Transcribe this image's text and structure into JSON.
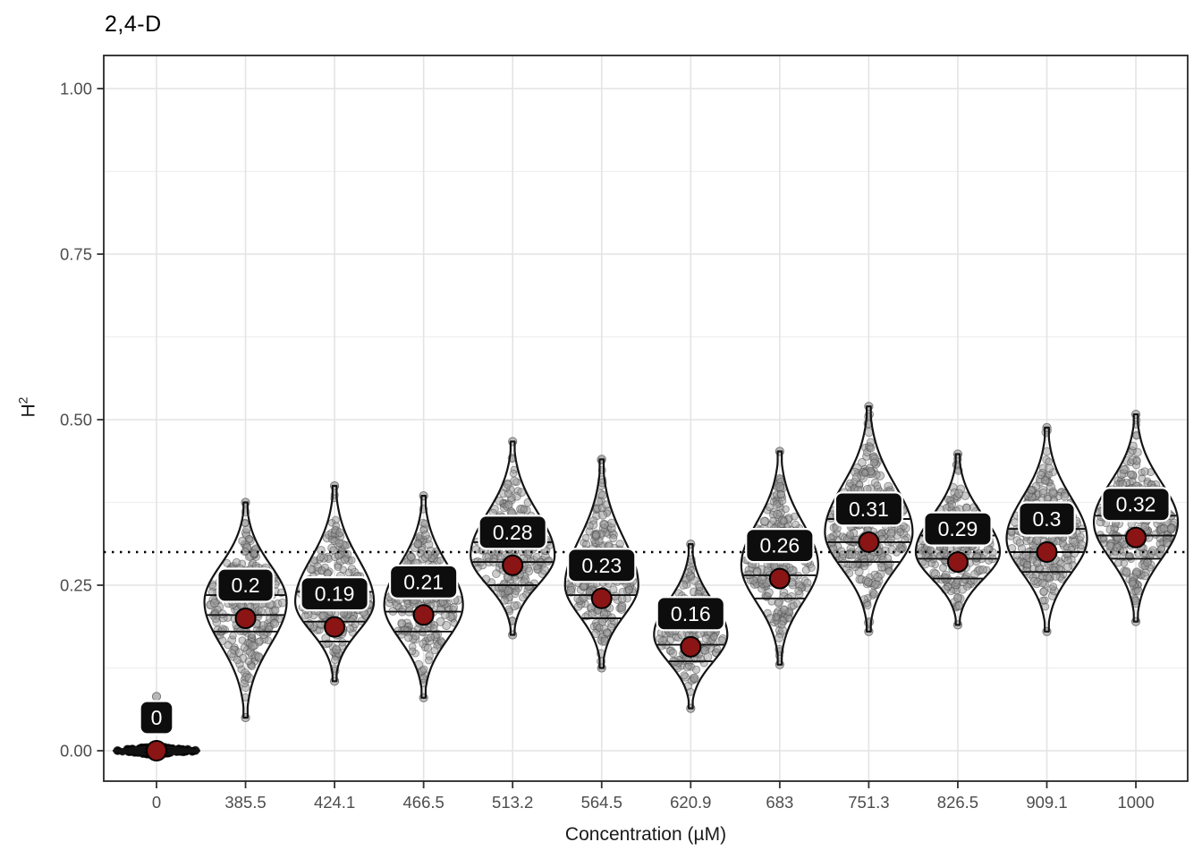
{
  "chart_data": {
    "type": "violin",
    "title": "2,4-D",
    "xlabel": "Concentration (µM)",
    "ylabel": "H^2",
    "ylabel_base": "H",
    "ylabel_sup": "2",
    "x_categories": [
      "0",
      "385.5",
      "424.1",
      "466.5",
      "513.2",
      "564.5",
      "620.9",
      "683",
      "751.3",
      "826.5",
      "909.1",
      "1000"
    ],
    "y_ticks": [
      {
        "value": 0.0,
        "label": "0.00"
      },
      {
        "value": 0.25,
        "label": "0.25"
      },
      {
        "value": 0.5,
        "label": "0.50"
      },
      {
        "value": 0.75,
        "label": "0.75"
      },
      {
        "value": 1.0,
        "label": "1.00"
      }
    ],
    "y_minor_ticks": [
      0.125,
      0.375,
      0.625,
      0.875
    ],
    "ylim": [
      -0.046,
      1.05
    ],
    "reference_line": {
      "y": 0.3,
      "style": "dotted"
    },
    "grid": true,
    "legend": "none",
    "colors": {
      "summary_point": "#8B1414",
      "label_box": "#0d0d0d",
      "label_text": "#ffffff",
      "violin_outline": "#141414",
      "jitter_point": "#9a9a9a",
      "grid_major": "#e4e4e4",
      "grid_minor": "#efefef",
      "axis_text": "#4d4d4d",
      "panel_border": "#262626",
      "reference_line_color": "#000000"
    },
    "series": [
      {
        "x": "0",
        "value_label": "0",
        "value": 0.0,
        "q1": -0.002,
        "q2": 0.0,
        "q3": 0.002,
        "min": -0.009,
        "max": 0.009,
        "mode": 0.0,
        "peak_halfwidth": 48,
        "flat": true,
        "outlier": 0.082,
        "point_color": "#000000"
      },
      {
        "x": "385.5",
        "value_label": "0.2",
        "value": 0.2,
        "q1": 0.18,
        "q2": 0.205,
        "q3": 0.235,
        "min": 0.05,
        "max": 0.375,
        "mode": 0.225,
        "peak_halfwidth": 46
      },
      {
        "x": "424.1",
        "value_label": "0.19",
        "value": 0.187,
        "q1": 0.165,
        "q2": 0.195,
        "q3": 0.24,
        "min": 0.105,
        "max": 0.4,
        "mode": 0.225,
        "peak_halfwidth": 44
      },
      {
        "x": "466.5",
        "value_label": "0.21",
        "value": 0.205,
        "q1": 0.18,
        "q2": 0.21,
        "q3": 0.265,
        "min": 0.08,
        "max": 0.385,
        "mode": 0.22,
        "peak_halfwidth": 44
      },
      {
        "x": "513.2",
        "value_label": "0.28",
        "value": 0.28,
        "q1": 0.25,
        "q2": 0.285,
        "q3": 0.315,
        "min": 0.175,
        "max": 0.467,
        "mode": 0.295,
        "peak_halfwidth": 47
      },
      {
        "x": "564.5",
        "value_label": "0.23",
        "value": 0.23,
        "q1": 0.2,
        "q2": 0.235,
        "q3": 0.27,
        "min": 0.125,
        "max": 0.44,
        "mode": 0.25,
        "peak_halfwidth": 41
      },
      {
        "x": "620.9",
        "value_label": "0.16",
        "value": 0.157,
        "q1": 0.135,
        "q2": 0.16,
        "q3": 0.2,
        "min": 0.064,
        "max": 0.312,
        "mode": 0.175,
        "peak_halfwidth": 41
      },
      {
        "x": "683",
        "value_label": "0.26",
        "value": 0.26,
        "q1": 0.23,
        "q2": 0.265,
        "q3": 0.3,
        "min": 0.13,
        "max": 0.452,
        "mode": 0.28,
        "peak_halfwidth": 43
      },
      {
        "x": "751.3",
        "value_label": "0.31",
        "value": 0.315,
        "q1": 0.285,
        "q2": 0.315,
        "q3": 0.35,
        "min": 0.18,
        "max": 0.52,
        "mode": 0.33,
        "peak_halfwidth": 49
      },
      {
        "x": "826.5",
        "value_label": "0.29",
        "value": 0.285,
        "q1": 0.26,
        "q2": 0.29,
        "q3": 0.325,
        "min": 0.19,
        "max": 0.448,
        "mode": 0.3,
        "peak_halfwidth": 47
      },
      {
        "x": "909.1",
        "value_label": "0.3",
        "value": 0.3,
        "q1": 0.27,
        "q2": 0.3,
        "q3": 0.335,
        "min": 0.18,
        "max": 0.488,
        "mode": 0.32,
        "peak_halfwidth": 45
      },
      {
        "x": "1000",
        "value_label": "0.32",
        "value": 0.322,
        "q1": 0.29,
        "q2": 0.325,
        "q3": 0.355,
        "min": 0.195,
        "max": 0.508,
        "mode": 0.345,
        "peak_halfwidth": 47
      }
    ]
  }
}
